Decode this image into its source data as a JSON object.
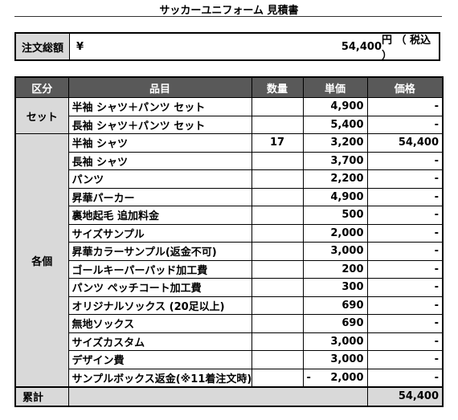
{
  "title": "サッカーユニフォーム 見積書",
  "total": {
    "label": "注文総額",
    "currency": "¥",
    "amount": "54,400",
    "unit": "円 （ 税込 ）"
  },
  "table": {
    "headers": [
      "区分",
      "品目",
      "数量",
      "単価",
      "価格"
    ],
    "groups": [
      {
        "category": "セット",
        "rows": [
          {
            "item": "半袖 シャツ＋パンツ セット",
            "qty": "",
            "unit_price": "4,900",
            "price": "-"
          },
          {
            "item": "長袖 シャツ＋パンツ セット",
            "qty": "",
            "unit_price": "5,400",
            "price": "-"
          }
        ]
      },
      {
        "category": "各個",
        "rows": [
          {
            "item": "半袖 シャツ",
            "qty": "17",
            "unit_price": "3,200",
            "price": "54,400"
          },
          {
            "item": "長袖 シャツ",
            "qty": "",
            "unit_price": "3,700",
            "price": "-"
          },
          {
            "item": "パンツ",
            "qty": "",
            "unit_price": "2,200",
            "price": "-"
          },
          {
            "item": "昇華パーカー",
            "qty": "",
            "unit_price": "4,900",
            "price": "-"
          },
          {
            "item": "裏地起毛 追加料金",
            "qty": "",
            "unit_price": "500",
            "price": "-"
          },
          {
            "item": "サイズサンプル",
            "qty": "",
            "unit_price": "2,000",
            "price": "-"
          },
          {
            "item": "昇華カラーサンプル(返金不可)",
            "qty": "",
            "unit_price": "3,000",
            "price": "-"
          },
          {
            "item": "ゴールキーパーパッド加工費",
            "qty": "",
            "unit_price": "200",
            "price": "-"
          },
          {
            "item": "パンツ ペッチコート加工費",
            "qty": "",
            "unit_price": "300",
            "price": "-"
          },
          {
            "item": "オリジナルソックス (20足以上)",
            "qty": "",
            "unit_price": "690",
            "price": "-"
          },
          {
            "item": "無地ソックス",
            "qty": "",
            "unit_price": "690",
            "price": "-"
          },
          {
            "item": "サイズカスタム",
            "qty": "",
            "unit_price": "3,000",
            "price": "-"
          },
          {
            "item": "デザイン費",
            "qty": "",
            "unit_price": "3,000",
            "price": "-"
          },
          {
            "item": "サンプルボックス返金(※11着注文時)",
            "qty": "",
            "unit_price": "2,000",
            "unit_price_sign": "-",
            "price": "-"
          }
        ]
      }
    ],
    "sum": {
      "label": "累計",
      "price": "54,400"
    }
  }
}
